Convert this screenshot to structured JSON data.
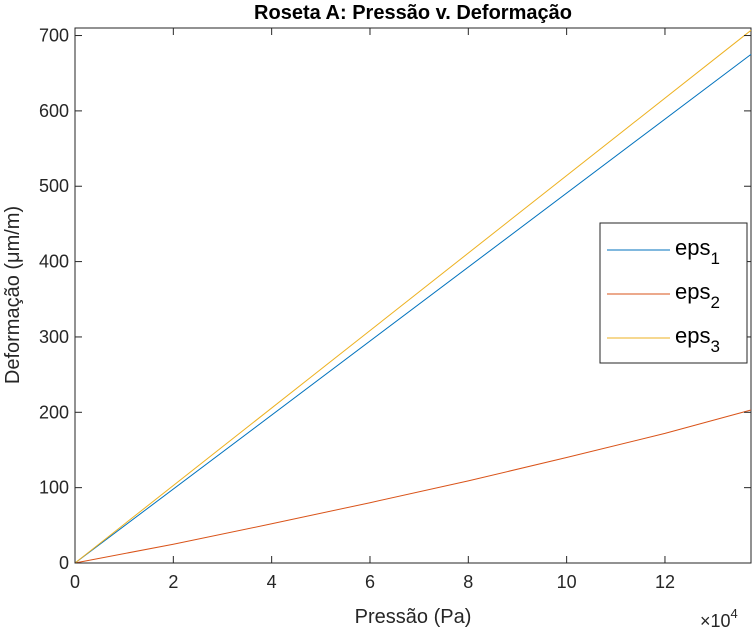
{
  "chart_data": {
    "type": "line",
    "title": "Roseta A: Pressão v. Deformação",
    "xlabel": "Pressão (Pa)",
    "ylabel": "Deformação (μm/m)",
    "x_exponent_label": "×10",
    "x_exponent_power": "4",
    "x_scale": 10000,
    "xlim": [
      0,
      137500
    ],
    "ylim": [
      0,
      710
    ],
    "xticks": [
      0,
      20000,
      40000,
      60000,
      80000,
      100000,
      120000
    ],
    "xtick_labels": [
      "0",
      "2",
      "4",
      "6",
      "8",
      "10",
      "12"
    ],
    "yticks": [
      0,
      100,
      200,
      300,
      400,
      500,
      600,
      700
    ],
    "ytick_labels": [
      "0",
      "100",
      "200",
      "300",
      "400",
      "500",
      "600",
      "700"
    ],
    "grid": false,
    "legend_position": "right",
    "series": [
      {
        "name": "eps",
        "subscript": "1",
        "color": "#0072BD",
        "x": [
          0,
          137500
        ],
        "y": [
          0,
          675
        ]
      },
      {
        "name": "eps",
        "subscript": "2",
        "color": "#D95319",
        "x": [
          0,
          20000,
          40000,
          60000,
          80000,
          100000,
          120000,
          137500
        ],
        "y": [
          0,
          25,
          52,
          80,
          109,
          140,
          172,
          203
        ]
      },
      {
        "name": "eps",
        "subscript": "3",
        "color": "#EDB120",
        "x": [
          0,
          137500
        ],
        "y": [
          0,
          707
        ]
      }
    ]
  }
}
